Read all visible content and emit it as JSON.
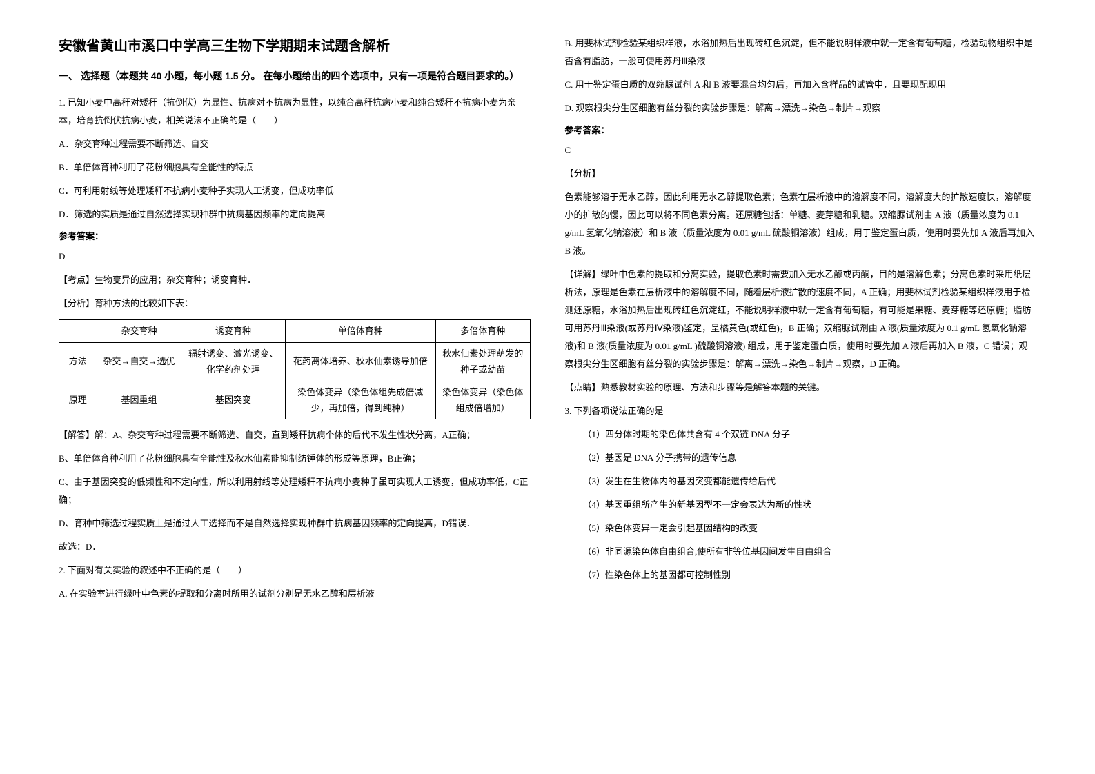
{
  "title": "安徽省黄山市溪口中学高三生物下学期期末试题含解析",
  "section_header": "一、 选择题（本题共 40 小题，每小题 1.5 分。 在每小题给出的四个选项中，只有一项是符合题目要求的。）",
  "q1": {
    "text": "1. 已知小麦中高秆对矮秆（抗倒伏）为显性、抗病对不抗病为显性，以纯合高秆抗病小麦和纯合矮秆不抗病小麦为亲本，培育抗倒伏抗病小麦，相关说法不正确的是（　　）",
    "options": {
      "a": "A．杂交育种过程需要不断筛选、自交",
      "b": "B．单倍体育种利用了花粉细胞具有全能性的特点",
      "c": "C．可利用射线等处理矮秆不抗病小麦种子实现人工诱变，但成功率低",
      "d": "D．筛选的实质是通过自然选择实现种群中抗病基因频率的定向提高"
    },
    "answer_label": "参考答案：",
    "answer": "D",
    "kaodian": "【考点】生物变异的应用；杂交育种；诱变育种．",
    "fenxi": "【分析】育种方法的比较如下表：",
    "table": {
      "headers": [
        "",
        "杂交育种",
        "诱变育种",
        "单倍体育种",
        "多倍体育种"
      ],
      "rows": [
        [
          "方法",
          "杂交→自交→选优",
          "辐射诱变、激光诱变、化学药剂处理",
          "花药离体培养、秋水仙素诱导加倍",
          "秋水仙素处理萌发的种子或幼苗"
        ],
        [
          "原理",
          "基因重组",
          "基因突变",
          "染色体变异（染色体组先成倍减少，再加倍，得到纯种）",
          "染色体变异（染色体组成倍增加）"
        ]
      ]
    },
    "jieda": [
      "【解答】解：A、杂交育种过程需要不断筛选、自交，直到矮秆抗病个体的后代不发生性状分离，A正确；",
      "B、单倍体育种利用了花粉细胞具有全能性及秋水仙素能抑制纺锤体的形成等原理，B正确；",
      "C、由于基因突变的低频性和不定向性，所以利用射线等处理矮秆不抗病小麦种子虽可实现人工诱变，但成功率低，C正确；",
      "D、育种中筛选过程实质上是通过人工选择而不是自然选择实现种群中抗病基因频率的定向提高，D错误．",
      "故选：D．"
    ]
  },
  "q2": {
    "text": "2. 下面对有关实验的叙述中不正确的是（　　）",
    "options": {
      "a": "A. 在实验室进行绿叶中色素的提取和分离时所用的试剂分别是无水乙醇和层析液",
      "b": "B. 用斐林试剂检验某组织样液，水浴加热后出现砖红色沉淀，但不能说明样液中就一定含有葡萄糖，检验动物组织中是否含有脂肪，一般可使用苏丹Ⅲ染液",
      "c": "C. 用于鉴定蛋白质的双缩脲试剂 A 和 B 液要混合均匀后，再加入含样品的试管中，且要现配现用",
      "d": "D. 观察根尖分生区细胞有丝分裂的实验步骤是：解离→漂洗→染色→制片→观察"
    },
    "answer_label": "参考答案：",
    "answer": "C",
    "fenxi_label": "【分析】",
    "fenxi": "色素能够溶于无水乙醇，因此利用无水乙醇提取色素；色素在层析液中的溶解度不同，溶解度大的扩散速度快，溶解度小的扩散的慢，因此可以将不同色素分离。还原糖包括：单糖、麦芽糖和乳糖。双缩脲试剂由 A 液（质量浓度为 0.1 g/mL 氢氧化钠溶液）和 B 液（质量浓度为 0.01 g/mL 硫酸铜溶液）组成，用于鉴定蛋白质，使用时要先加 A 液后再加入 B 液。",
    "xiangjie": "【详解】绿叶中色素的提取和分离实验，提取色素时需要加入无水乙醇或丙酮，目的是溶解色素；分离色素时采用纸层析法，原理是色素在层析液中的溶解度不同，随着层析液扩散的速度不同，A 正确；用斐林试剂检验某组织样液用于检测还原糖，水浴加热后出现砖红色沉淀红，不能说明样液中就一定含有葡萄糖，有可能是果糖、麦芽糖等还原糖；脂肪可用苏丹Ⅲ染液(或苏丹Ⅳ染液)鉴定，呈橘黄色(或红色)，B 正确；双缩脲试剂由 A 液(质量浓度为 0.1 g/mL 氢氧化钠溶液)和 B 液(质量浓度为 0.01 g/mL )硫酸铜溶液) 组成，用于鉴定蛋白质，使用时要先加 A 液后再加入 B 液，C 错误；观察根尖分生区细胞有丝分裂的实验步骤是：解离→漂洗→染色→制片→观察，D 正确。",
    "dianjing": "【点睛】熟悉教材实验的原理、方法和步骤等是解答本题的关键。"
  },
  "q3": {
    "text": "3. 下列各项说法正确的是",
    "items": [
      "（1）四分体时期的染色体共含有 4 个双链 DNA 分子",
      "（2）基因是 DNA 分子携带的遗传信息",
      "（3）发生在生物体内的基因突变都能遗传给后代",
      "（4）基因重组所产生的新基因型不一定会表达为新的性状",
      "（5）染色体变异一定会引起基因结构的改变",
      "（6）非同源染色体自由组合,使所有非等位基因间发生自由组合",
      "（7）性染色体上的基因都可控制性别"
    ]
  }
}
